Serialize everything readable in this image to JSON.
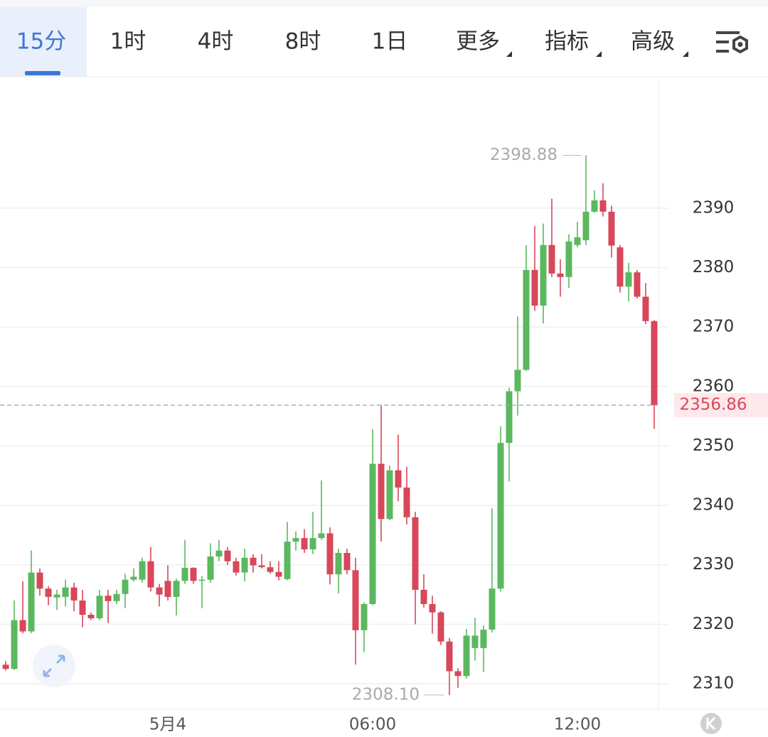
{
  "tabs": [
    "15分",
    "1时",
    "4时",
    "8时",
    "1日",
    "更多",
    "指标",
    "高级"
  ],
  "chart_data": {
    "type": "candlestick",
    "open": [
      2313.2,
      2312.5,
      2320.7,
      2318.8,
      2328.7,
      2326,
      2324.5,
      2324.6,
      2326.2,
      2324,
      2321.6,
      2321,
      2324.8,
      2323.9,
      2325.1,
      2327.5,
      2327.5,
      2330.6,
      2326.2,
      2327.3,
      2324.6,
      2327.3,
      2329.5,
      2327.3,
      2327.5,
      2331.4,
      2332.4,
      2330.6,
      2328.7,
      2331.2,
      2329.9,
      2329.6,
      2328.8,
      2327.6,
      2333.9,
      2334.5,
      2332.6,
      2334.5,
      2335.3,
      2328.4,
      2332,
      2329.1,
      2319,
      2323.4,
      2347,
      2337.7,
      2345.9,
      2343,
      2338,
      2325.8,
      2323.4,
      2322,
      2317.1,
      2312.1,
      2311.3,
      2316,
      2316,
      2319.1,
      2326,
      2350.5,
      2359.2,
      2362.8,
      2379.6,
      2373.6,
      2383.8,
      2379,
      2378.4,
      2383.8,
      2384.6,
      2389.4,
      2391.3,
      2389.4,
      2383.4,
      2376.8,
      2379.2,
      2375.1,
      2371
    ],
    "high": [
      2313.8,
      2324,
      2327.2,
      2332.4,
      2329.4,
      2326.4,
      2325.8,
      2327.5,
      2327,
      2325.8,
      2322,
      2325.8,
      2325.8,
      2325.8,
      2328.5,
      2329.4,
      2331.2,
      2333,
      2326.8,
      2329.9,
      2327.7,
      2334.2,
      2329.6,
      2328.1,
      2333.6,
      2334.2,
      2333,
      2331.2,
      2332.7,
      2331.8,
      2331.8,
      2330.6,
      2330.6,
      2337.2,
      2335.6,
      2336,
      2338.9,
      2344.2,
      2336.3,
      2332.7,
      2332.7,
      2331.2,
      2323.7,
      2352.8,
      2356.86,
      2346.7,
      2351.9,
      2346.5,
      2338.9,
      2328.4,
      2324.8,
      2322.2,
      2317.7,
      2312.6,
      2319.2,
      2321.1,
      2319.8,
      2339.5,
      2353.3,
      2359.8,
      2371.8,
      2383.8,
      2387,
      2387.4,
      2391.6,
      2381.4,
      2385.6,
      2387.7,
      2398.88,
      2393,
      2394.2,
      2390.4,
      2383.8,
      2380.8,
      2379.6,
      2377.4,
      2371.2
    ],
    "low": [
      2312.2,
      2312.3,
      2318.5,
      2318.5,
      2324.8,
      2323.2,
      2322.4,
      2323,
      2322.2,
      2319.5,
      2320.7,
      2320.7,
      2320.2,
      2323.4,
      2322.7,
      2327.2,
      2327,
      2325.5,
      2323,
      2324,
      2321.5,
      2326.8,
      2326.8,
      2322.7,
      2327,
      2330.6,
      2330,
      2328.2,
      2327.2,
      2328.7,
      2329.4,
      2328.5,
      2327.4,
      2327.4,
      2332.4,
      2332,
      2331.8,
      2334.2,
      2326.7,
      2325.2,
      2328.4,
      2313.2,
      2315.3,
      2323.2,
      2333.9,
      2337.5,
      2340.7,
      2336.8,
      2320,
      2322.8,
      2318.4,
      2316.5,
      2308.1,
      2309.3,
      2310.9,
      2313.9,
      2312,
      2318.6,
      2325.5,
      2344,
      2355.1,
      2362.6,
      2372.7,
      2370.6,
      2378.4,
      2375.1,
      2376.6,
      2383.4,
      2383.8,
      2389.2,
      2388.6,
      2381.7,
      2375.8,
      2374.3,
      2374.8,
      2370.5,
      2352.9
    ],
    "close": [
      2312.5,
      2320.7,
      2318.8,
      2328.7,
      2326,
      2324.6,
      2325,
      2326.2,
      2324,
      2321.6,
      2321,
      2324.8,
      2323.9,
      2325.1,
      2327.5,
      2328,
      2330.6,
      2326.2,
      2325,
      2324.6,
      2327.3,
      2329.5,
      2327.3,
      2327.5,
      2331.4,
      2332.4,
      2330.6,
      2328.7,
      2331.2,
      2329.9,
      2329.6,
      2328.8,
      2328,
      2333.9,
      2334.5,
      2332.6,
      2334.5,
      2335.3,
      2328.4,
      2332,
      2329.1,
      2319,
      2323.4,
      2347,
      2337.7,
      2345.9,
      2343,
      2338,
      2325.8,
      2323.4,
      2322,
      2317.1,
      2312.1,
      2311.3,
      2318.1,
      2318.1,
      2319.1,
      2326,
      2350.5,
      2359.2,
      2362.8,
      2379.6,
      2373.6,
      2383.8,
      2379,
      2378.4,
      2384.4,
      2385.1,
      2389.4,
      2391.3,
      2389.4,
      2383.7,
      2376.8,
      2379.2,
      2375.1,
      2371,
      2356.86
    ],
    "up_color": "#5bb85f",
    "down_color": "#d8475a",
    "xlim": [
      -0.67,
      76.42
    ],
    "xticks": [
      {
        "value": 19,
        "label": "5月4"
      },
      {
        "value": 43,
        "label": "06:00"
      },
      {
        "value": 67,
        "label": "12:00"
      }
    ],
    "ylim": [
      2305.7,
      2412.1
    ],
    "yticks": [
      2310,
      2320,
      2330,
      2340,
      2350,
      2360,
      2370,
      2380,
      2390
    ],
    "grid": true,
    "high_label": 2398.88,
    "low_label": {
      "value": 2308.1,
      "label": "2308.10"
    },
    "last_price": 2356.86
  }
}
